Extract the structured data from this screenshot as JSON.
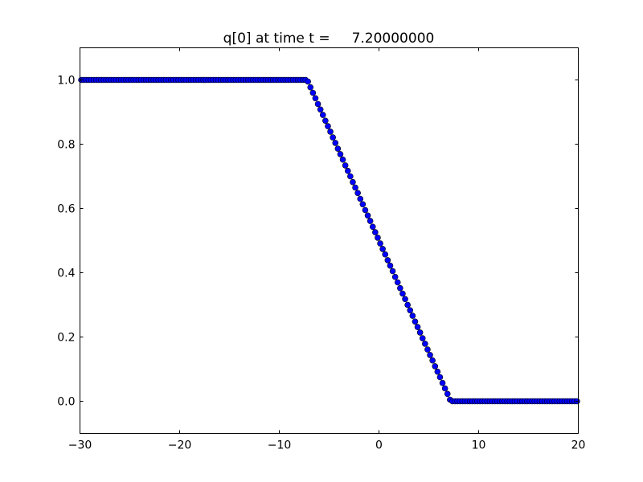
{
  "chart_data": {
    "type": "scatter",
    "title": "q[0] at time t =     7.20000000",
    "xlabel": "",
    "ylabel": "",
    "xlim": [
      -30,
      20
    ],
    "ylim": [
      -0.1,
      1.1
    ],
    "grid": false,
    "xticks": [
      -30,
      -20,
      -10,
      0,
      10,
      20
    ],
    "xtick_labels": [
      "−30",
      "−20",
      "−10",
      "0",
      "10",
      "20"
    ],
    "yticks": [
      0.0,
      0.2,
      0.4,
      0.6,
      0.8,
      1.0
    ],
    "ytick_labels": [
      "0.0",
      "0.2",
      "0.4",
      "0.6",
      "0.8",
      "1.0"
    ],
    "marker": "circle",
    "marker_face_color": "#0000ff",
    "marker_edge_color": "#000000",
    "x": [
      -29.875,
      -29.625,
      -29.375,
      -29.125,
      -28.875,
      -28.625,
      -28.375,
      -28.125,
      -27.875,
      -27.625,
      -27.375,
      -27.125,
      -26.875,
      -26.625,
      -26.375,
      -26.125,
      -25.875,
      -25.625,
      -25.375,
      -25.125,
      -24.875,
      -24.625,
      -24.375,
      -24.125,
      -23.875,
      -23.625,
      -23.375,
      -23.125,
      -22.875,
      -22.625,
      -22.375,
      -22.125,
      -21.875,
      -21.625,
      -21.375,
      -21.125,
      -20.875,
      -20.625,
      -20.375,
      -20.125,
      -19.875,
      -19.625,
      -19.375,
      -19.125,
      -18.875,
      -18.625,
      -18.375,
      -18.125,
      -17.875,
      -17.625,
      -17.375,
      -17.125,
      -16.875,
      -16.625,
      -16.375,
      -16.125,
      -15.875,
      -15.625,
      -15.375,
      -15.125,
      -14.875,
      -14.625,
      -14.375,
      -14.125,
      -13.875,
      -13.625,
      -13.375,
      -13.125,
      -12.875,
      -12.625,
      -12.375,
      -12.125,
      -11.875,
      -11.625,
      -11.375,
      -11.125,
      -10.875,
      -10.625,
      -10.375,
      -10.125,
      -9.875,
      -9.625,
      -9.375,
      -9.125,
      -8.875,
      -8.625,
      -8.375,
      -8.125,
      -7.875,
      -7.625,
      -7.375,
      -7.125,
      -6.875,
      -6.625,
      -6.375,
      -6.125,
      -5.875,
      -5.625,
      -5.375,
      -5.125,
      -4.875,
      -4.625,
      -4.375,
      -4.125,
      -3.875,
      -3.625,
      -3.375,
      -3.125,
      -2.875,
      -2.625,
      -2.375,
      -2.125,
      -1.875,
      -1.625,
      -1.375,
      -1.125,
      -0.875,
      -0.625,
      -0.375,
      -0.125,
      0.125,
      0.375,
      0.625,
      0.875,
      1.125,
      1.375,
      1.625,
      1.875,
      2.125,
      2.375,
      2.625,
      2.875,
      3.125,
      3.375,
      3.625,
      3.875,
      4.125,
      4.375,
      4.625,
      4.875,
      5.125,
      5.375,
      5.625,
      5.875,
      6.125,
      6.375,
      6.625,
      6.875,
      7.125,
      7.375,
      7.625,
      7.875,
      8.125,
      8.375,
      8.625,
      8.875,
      9.125,
      9.375,
      9.625,
      9.875,
      10.125,
      10.375,
      10.625,
      10.875,
      11.125,
      11.375,
      11.625,
      11.875,
      12.125,
      12.375,
      12.625,
      12.875,
      13.125,
      13.375,
      13.625,
      13.875,
      14.125,
      14.375,
      14.625,
      14.875,
      15.125,
      15.375,
      15.625,
      15.875,
      16.125,
      16.375,
      16.625,
      16.875,
      17.125,
      17.375,
      17.625,
      17.875,
      18.125,
      18.375,
      18.625,
      18.875,
      19.125,
      19.375,
      19.625,
      19.875
    ],
    "y": [
      1,
      1,
      1,
      1,
      1,
      1,
      1,
      1,
      1,
      1,
      1,
      1,
      1,
      1,
      1,
      1,
      1,
      1,
      1,
      1,
      1,
      1,
      1,
      1,
      1,
      1,
      1,
      1,
      1,
      1,
      1,
      1,
      1,
      1,
      1,
      1,
      1,
      1,
      1,
      1,
      1,
      1,
      1,
      1,
      1,
      1,
      1,
      1,
      1,
      1,
      1,
      1,
      1,
      1,
      1,
      1,
      1,
      1,
      1,
      1,
      1,
      1,
      1,
      1,
      1,
      1,
      1,
      1,
      1,
      1,
      1,
      1,
      1,
      1,
      1,
      1,
      1,
      1,
      1,
      1,
      1,
      1,
      1,
      1,
      1,
      1,
      1,
      1,
      1,
      1,
      1,
      0.995,
      0.977,
      0.96,
      0.943,
      0.925,
      0.908,
      0.891,
      0.873,
      0.856,
      0.839,
      0.821,
      0.804,
      0.786,
      0.769,
      0.752,
      0.734,
      0.717,
      0.7,
      0.682,
      0.665,
      0.648,
      0.63,
      0.613,
      0.595,
      0.578,
      0.561,
      0.543,
      0.526,
      0.509,
      0.491,
      0.474,
      0.457,
      0.439,
      0.422,
      0.405,
      0.387,
      0.37,
      0.352,
      0.335,
      0.318,
      0.3,
      0.283,
      0.266,
      0.248,
      0.231,
      0.214,
      0.196,
      0.179,
      0.161,
      0.144,
      0.127,
      0.109,
      0.092,
      0.075,
      0.057,
      0.04,
      0.023,
      0.005,
      0,
      0,
      0,
      0,
      0,
      0,
      0,
      0,
      0,
      0,
      0,
      0,
      0,
      0,
      0,
      0,
      0,
      0,
      0,
      0,
      0,
      0,
      0,
      0,
      0,
      0,
      0,
      0,
      0,
      0,
      0,
      0,
      0,
      0,
      0,
      0,
      0,
      0,
      0,
      0,
      0,
      0,
      0,
      0,
      0,
      0,
      0,
      0,
      0,
      0,
      0
    ]
  }
}
